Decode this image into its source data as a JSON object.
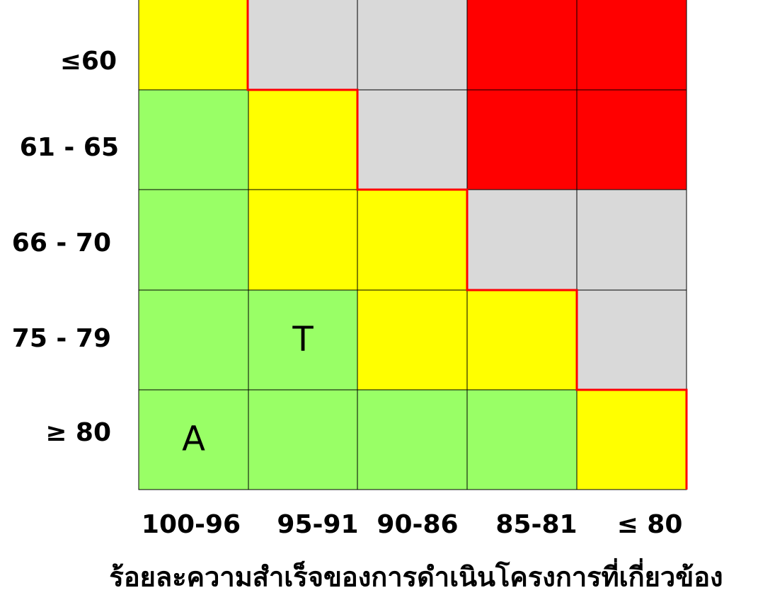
{
  "grid": {
    "row_labels": [
      "≤60",
      "61 - 65",
      "66 - 70",
      "75 - 79",
      "≥ 80"
    ],
    "column_labels": [
      "100-96",
      "95-91",
      "90-86",
      "85-81",
      "≤ 80"
    ],
    "x_axis_title": "ร้อยละความสำเร็จของการดำเนินโครงการที่เกี่ยวข้อง",
    "cells": [
      [
        {
          "color": "#ffff00"
        },
        {
          "color": "#d9d9d9"
        },
        {
          "color": "#d9d9d9"
        },
        {
          "color": "#ff0000"
        },
        {
          "color": "#ff0000"
        }
      ],
      [
        {
          "color": "#99ff66"
        },
        {
          "color": "#ffff00"
        },
        {
          "color": "#d9d9d9"
        },
        {
          "color": "#ff0000"
        },
        {
          "color": "#ff0000"
        }
      ],
      [
        {
          "color": "#99ff66"
        },
        {
          "color": "#ffff00"
        },
        {
          "color": "#ffff00"
        },
        {
          "color": "#d9d9d9"
        },
        {
          "color": "#d9d9d9"
        }
      ],
      [
        {
          "color": "#99ff66"
        },
        {
          "color": "#99ff66",
          "text": "T"
        },
        {
          "color": "#ffff00"
        },
        {
          "color": "#ffff00"
        },
        {
          "color": "#d9d9d9"
        }
      ],
      [
        {
          "color": "#99ff66",
          "text": "A"
        },
        {
          "color": "#99ff66"
        },
        {
          "color": "#99ff66"
        },
        {
          "color": "#99ff66"
        },
        {
          "color": "#ffff00"
        }
      ]
    ]
  }
}
